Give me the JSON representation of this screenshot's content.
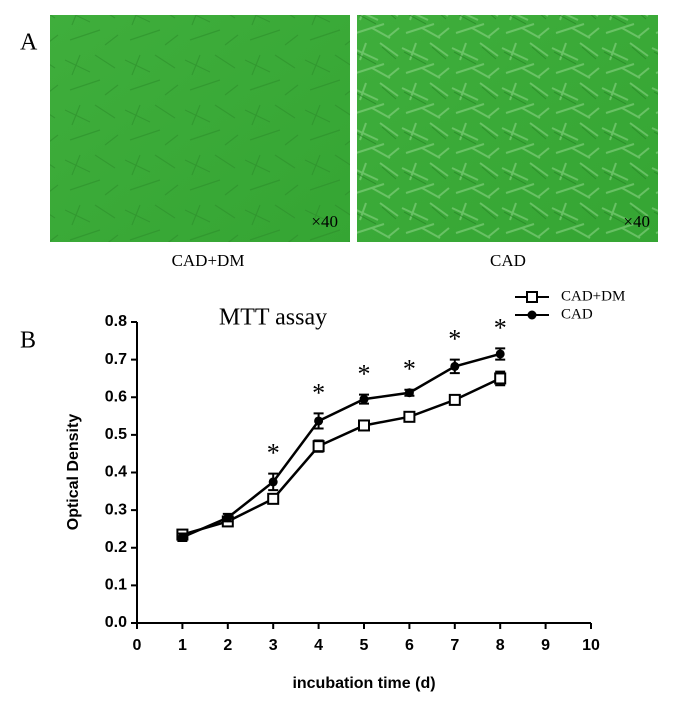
{
  "figure": {
    "panel_a_label": "A",
    "panel_b_label": "B",
    "images": [
      {
        "magnification": "×40",
        "caption": "CAD+DM"
      },
      {
        "magnification": "×40",
        "caption": "CAD"
      }
    ]
  },
  "chart_data": {
    "type": "line",
    "title": "MTT assay",
    "x_label": "incubation time (d)",
    "y_label": "Optical Density",
    "x": [
      1,
      2,
      3,
      4,
      5,
      6,
      7,
      8
    ],
    "series": [
      {
        "name": "CAD+DM",
        "color": "#000000",
        "marker": "open-square",
        "values": [
          0.235,
          0.27,
          0.33,
          0.47,
          0.525,
          0.548,
          0.593,
          0.65
        ],
        "errors": [
          0.01,
          0.01,
          0.01,
          0.015,
          0.01,
          0.005,
          0.008,
          0.018
        ]
      },
      {
        "name": "CAD",
        "color": "#000000",
        "marker": "filled-circle",
        "values": [
          0.228,
          0.28,
          0.375,
          0.537,
          0.595,
          0.612,
          0.682,
          0.715
        ],
        "errors": [
          0.01,
          0.01,
          0.022,
          0.02,
          0.012,
          0.008,
          0.018,
          0.015
        ]
      }
    ],
    "significant_x": [
      3,
      4,
      5,
      6,
      7,
      8
    ],
    "significance_label": "*",
    "xlim": [
      0,
      10
    ],
    "xticks": [
      0,
      1,
      2,
      3,
      4,
      5,
      6,
      7,
      8,
      9,
      10
    ],
    "ylim": [
      0,
      0.8
    ],
    "yticks": [
      {
        "value": 0,
        "label": "0.0"
      },
      0.1,
      0.2,
      0.3,
      0.4,
      0.5,
      0.6,
      0.7,
      0.8
    ],
    "grid": false,
    "legend": "upper right"
  }
}
